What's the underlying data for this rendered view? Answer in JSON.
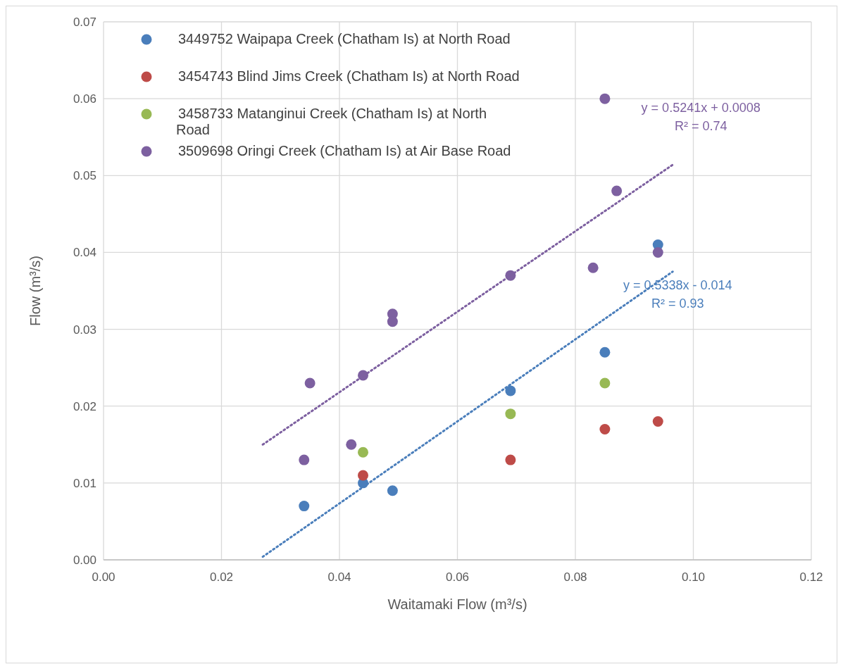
{
  "chart_data": {
    "type": "scatter",
    "xlabel": "Waitamaki Flow (m³/s)",
    "ylabel": "Flow (m³/s)",
    "xlim": [
      0,
      0.12
    ],
    "xticks": [
      {
        "value": 0,
        "label": "0.00"
      },
      {
        "value": 0.02,
        "label": "0.02"
      },
      {
        "value": 0.04,
        "label": "0.04"
      },
      {
        "value": 0.06,
        "label": "0.06"
      },
      {
        "value": 0.08,
        "label": "0.08"
      },
      {
        "value": 0.1,
        "label": "0.10"
      },
      {
        "value": 0.12,
        "label": "0.12"
      }
    ],
    "ylim": [
      0,
      0.07
    ],
    "yticks": [
      {
        "value": 0,
        "label": "0.00"
      },
      {
        "value": 0.01,
        "label": "0.01"
      },
      {
        "value": 0.02,
        "label": "0.02"
      },
      {
        "value": 0.03,
        "label": "0.03"
      },
      {
        "value": 0.04,
        "label": "0.04"
      },
      {
        "value": 0.05,
        "label": "0.05"
      },
      {
        "value": 0.06,
        "label": "0.06"
      },
      {
        "value": 0.07,
        "label": "0.07"
      }
    ],
    "grid": true,
    "legend": "top left",
    "marker": "circle",
    "series": [
      {
        "name": "3449752 Waipapa Creek (Chatham Is) at North Road",
        "color": "#4a7ebb",
        "x": [
          0.034,
          0.044,
          0.049,
          0.069,
          0.085,
          0.094
        ],
        "values": [
          0.007,
          0.01,
          0.009,
          0.022,
          0.027,
          0.041
        ]
      },
      {
        "name": "3454743 Blind Jims Creek (Chatham Is) at North Road",
        "color": "#be4b48",
        "x": [
          0.044,
          0.069,
          0.085,
          0.094
        ],
        "values": [
          0.011,
          0.013,
          0.017,
          0.018
        ]
      },
      {
        "name": "3458733 Matanginui Creek (Chatham Is) at North Road",
        "color": "#98b954",
        "x": [
          0.044,
          0.069,
          0.085
        ],
        "values": [
          0.014,
          0.019,
          0.023
        ]
      },
      {
        "name": "3509698 Oringi Creek (Chatham Is) at Air Base Road",
        "color": "#7d60a0",
        "x": [
          0.034,
          0.035,
          0.042,
          0.044,
          0.049,
          0.049,
          0.069,
          0.083,
          0.085,
          0.087,
          0.094
        ],
        "values": [
          0.013,
          0.023,
          0.015,
          0.024,
          0.032,
          0.031,
          0.037,
          0.038,
          0.06,
          0.048,
          0.04
        ]
      },
      {
        "type": "line",
        "marker": "none",
        "line_style": "dotted",
        "color": "#7d60a0",
        "x": [
          0.027,
          0.0965
        ],
        "values": [
          0.015,
          0.0514
        ]
      },
      {
        "type": "line",
        "marker": "none",
        "line_style": "dotted",
        "color": "#4a7ebb",
        "x": [
          0.027,
          0.0965
        ],
        "values": [
          0.0004,
          0.0375
        ]
      }
    ],
    "annotations": [
      "y = 0.5241x + 0.0008",
      "R² = 0.74",
      "y = 0.5338x - 0.014",
      "R² = 0.93"
    ]
  }
}
